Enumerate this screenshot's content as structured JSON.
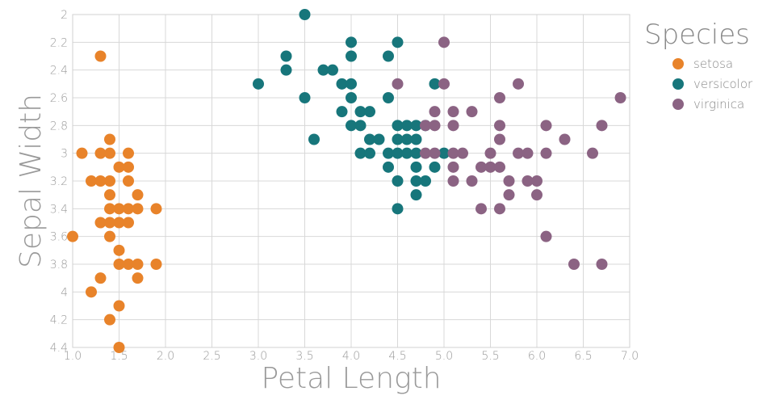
{
  "chart_data": {
    "type": "scatter",
    "xlabel": "Petal Length",
    "ylabel": "Sepal Width",
    "xlim": [
      1.0,
      7.0
    ],
    "ylim": [
      2.0,
      4.4
    ],
    "y_inverted": true,
    "x_ticks": [
      "1.0",
      "1.5",
      "2.0",
      "2.5",
      "3.0",
      "3.5",
      "4.0",
      "4.5",
      "5.0",
      "5.5",
      "6.0",
      "6.5",
      "7.0"
    ],
    "y_ticks": [
      "2",
      "2.2",
      "2.4",
      "2.6",
      "2.8",
      "3",
      "3.2",
      "3.4",
      "3.6",
      "3.8",
      "4",
      "4.2",
      "4.4"
    ],
    "grid": true,
    "legend": {
      "title": "Species",
      "position": "right"
    },
    "series": [
      {
        "name": "setosa",
        "color": "#e8832a",
        "points": [
          [
            1.3,
            2.3
          ],
          [
            1.1,
            3.0
          ],
          [
            1.3,
            3.0
          ],
          [
            1.4,
            3.0
          ],
          [
            1.6,
            3.0
          ],
          [
            1.4,
            2.9
          ],
          [
            1.5,
            3.1
          ],
          [
            1.6,
            3.1
          ],
          [
            1.2,
            3.2
          ],
          [
            1.3,
            3.2
          ],
          [
            1.4,
            3.2
          ],
          [
            1.6,
            3.2
          ],
          [
            1.4,
            3.3
          ],
          [
            1.7,
            3.3
          ],
          [
            1.4,
            3.4
          ],
          [
            1.5,
            3.4
          ],
          [
            1.6,
            3.4
          ],
          [
            1.7,
            3.4
          ],
          [
            1.9,
            3.4
          ],
          [
            1.3,
            3.5
          ],
          [
            1.4,
            3.5
          ],
          [
            1.5,
            3.5
          ],
          [
            1.6,
            3.5
          ],
          [
            1.0,
            3.6
          ],
          [
            1.4,
            3.6
          ],
          [
            1.5,
            3.7
          ],
          [
            1.5,
            3.8
          ],
          [
            1.6,
            3.8
          ],
          [
            1.7,
            3.8
          ],
          [
            1.9,
            3.8
          ],
          [
            1.3,
            3.9
          ],
          [
            1.7,
            3.9
          ],
          [
            1.2,
            4.0
          ],
          [
            1.5,
            4.1
          ],
          [
            1.4,
            4.2
          ],
          [
            1.5,
            4.4
          ]
        ]
      },
      {
        "name": "versicolor",
        "color": "#17767b",
        "points": [
          [
            3.5,
            2.0
          ],
          [
            4.0,
            2.2
          ],
          [
            4.5,
            2.2
          ],
          [
            3.3,
            2.3
          ],
          [
            4.0,
            2.3
          ],
          [
            4.4,
            2.3
          ],
          [
            3.3,
            2.4
          ],
          [
            3.7,
            2.4
          ],
          [
            3.8,
            2.4
          ],
          [
            3.0,
            2.5
          ],
          [
            3.9,
            2.5
          ],
          [
            4.0,
            2.5
          ],
          [
            4.9,
            2.5
          ],
          [
            3.5,
            2.6
          ],
          [
            4.0,
            2.6
          ],
          [
            4.4,
            2.6
          ],
          [
            3.9,
            2.7
          ],
          [
            4.1,
            2.7
          ],
          [
            4.2,
            2.7
          ],
          [
            4.0,
            2.8
          ],
          [
            4.1,
            2.8
          ],
          [
            4.5,
            2.8
          ],
          [
            4.6,
            2.8
          ],
          [
            4.7,
            2.8
          ],
          [
            4.8,
            2.8
          ],
          [
            3.6,
            2.9
          ],
          [
            4.2,
            2.9
          ],
          [
            4.3,
            2.9
          ],
          [
            4.5,
            2.9
          ],
          [
            4.6,
            2.9
          ],
          [
            4.7,
            2.9
          ],
          [
            4.1,
            3.0
          ],
          [
            4.2,
            3.0
          ],
          [
            4.4,
            3.0
          ],
          [
            4.5,
            3.0
          ],
          [
            4.6,
            3.0
          ],
          [
            4.7,
            3.0
          ],
          [
            5.0,
            3.0
          ],
          [
            4.4,
            3.1
          ],
          [
            4.7,
            3.1
          ],
          [
            4.9,
            3.1
          ],
          [
            4.5,
            3.2
          ],
          [
            4.7,
            3.2
          ],
          [
            4.8,
            3.2
          ],
          [
            4.7,
            3.3
          ],
          [
            4.5,
            3.4
          ]
        ]
      },
      {
        "name": "virginica",
        "color": "#8b6383",
        "points": [
          [
            5.0,
            2.2
          ],
          [
            4.5,
            2.5
          ],
          [
            5.0,
            2.5
          ],
          [
            5.8,
            2.5
          ],
          [
            5.6,
            2.6
          ],
          [
            6.9,
            2.6
          ],
          [
            4.9,
            2.7
          ],
          [
            5.1,
            2.7
          ],
          [
            5.3,
            2.7
          ],
          [
            4.8,
            2.8
          ],
          [
            4.9,
            2.8
          ],
          [
            5.1,
            2.8
          ],
          [
            5.6,
            2.8
          ],
          [
            6.1,
            2.8
          ],
          [
            6.7,
            2.8
          ],
          [
            5.6,
            2.9
          ],
          [
            6.3,
            2.9
          ],
          [
            4.8,
            3.0
          ],
          [
            4.9,
            3.0
          ],
          [
            5.1,
            3.0
          ],
          [
            5.2,
            3.0
          ],
          [
            5.5,
            3.0
          ],
          [
            5.8,
            3.0
          ],
          [
            5.9,
            3.0
          ],
          [
            6.1,
            3.0
          ],
          [
            6.6,
            3.0
          ],
          [
            5.1,
            3.1
          ],
          [
            5.4,
            3.1
          ],
          [
            5.5,
            3.1
          ],
          [
            5.6,
            3.1
          ],
          [
            5.1,
            3.2
          ],
          [
            5.3,
            3.2
          ],
          [
            5.7,
            3.2
          ],
          [
            5.9,
            3.2
          ],
          [
            6.0,
            3.2
          ],
          [
            5.7,
            3.3
          ],
          [
            6.0,
            3.3
          ],
          [
            5.4,
            3.4
          ],
          [
            5.6,
            3.4
          ],
          [
            6.1,
            3.6
          ],
          [
            6.4,
            3.8
          ],
          [
            6.7,
            3.8
          ]
        ]
      }
    ]
  }
}
